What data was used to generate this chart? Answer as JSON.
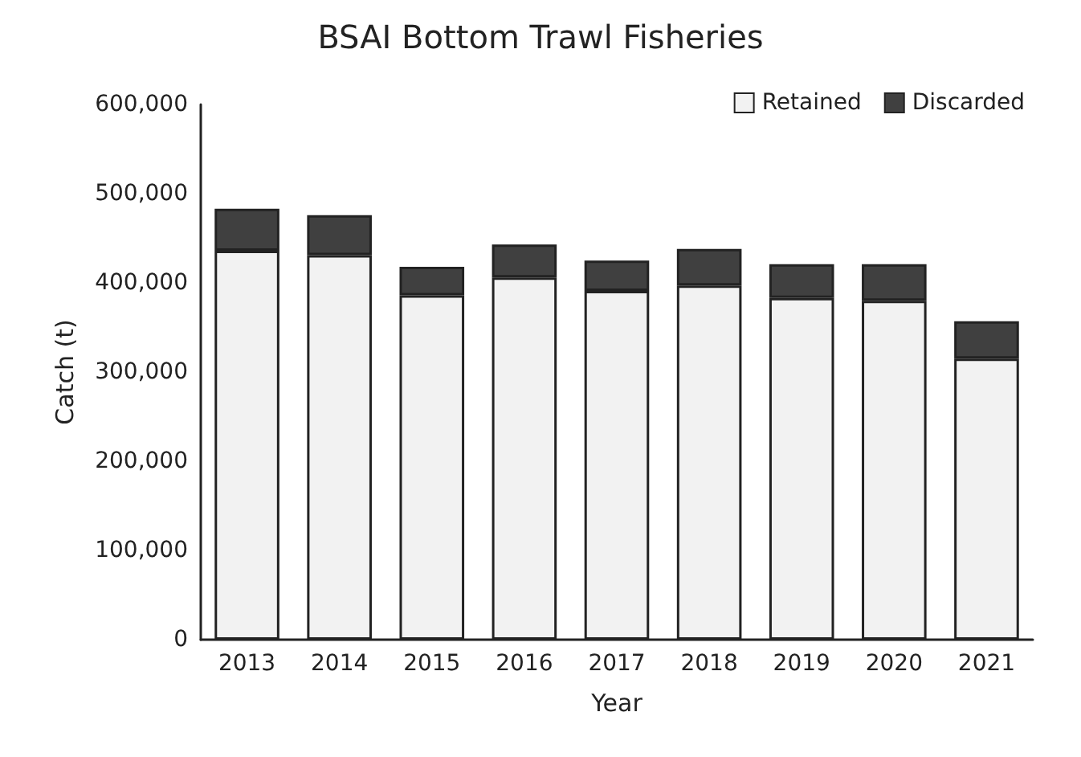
{
  "chart_data": {
    "type": "bar",
    "title": "BSAI Bottom Trawl Fisheries",
    "xlabel": "Year",
    "ylabel": "Catch (t)",
    "categories": [
      "2013",
      "2014",
      "2015",
      "2016",
      "2017",
      "2018",
      "2019",
      "2020",
      "2021"
    ],
    "series": [
      {
        "name": "Retained",
        "color": "#f2f2f2",
        "values": [
          436000,
          431000,
          386000,
          406000,
          391000,
          397000,
          383000,
          380000,
          315000
        ]
      },
      {
        "name": "Discarded",
        "color": "#404040",
        "values": [
          47000,
          45000,
          32000,
          37000,
          34000,
          41000,
          38000,
          41000,
          42000
        ]
      }
    ],
    "stacked": true,
    "ylim": [
      0,
      600000
    ],
    "yticks": [
      0,
      {
        "value": 100000,
        "label": "100,000"
      },
      {
        "value": 200000,
        "label": "200,000"
      },
      {
        "value": 300000,
        "label": "300,000"
      },
      {
        "value": 400000,
        "label": "400,000"
      },
      {
        "value": 500000,
        "label": "500,000"
      },
      {
        "value": 600000,
        "label": "600,000"
      }
    ],
    "grid": false,
    "legend": "top right"
  }
}
